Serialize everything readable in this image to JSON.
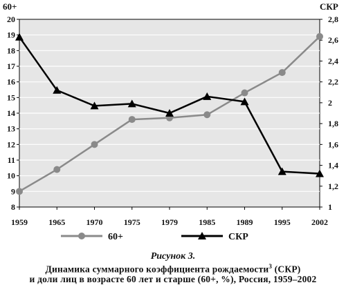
{
  "chart_data": {
    "type": "line",
    "categories": [
      "1959",
      "1965",
      "1970",
      "1975",
      "1979",
      "1985",
      "1989",
      "1995",
      "2002"
    ],
    "series": [
      {
        "name": "60+",
        "axis": "left",
        "color": "#8a8a8a",
        "marker": "circle",
        "values": [
          9.0,
          10.4,
          12.0,
          13.6,
          13.7,
          13.9,
          15.3,
          16.6,
          18.9
        ]
      },
      {
        "name": "СКР",
        "axis": "right",
        "color": "#000000",
        "marker": "triangle",
        "values": [
          2.63,
          2.12,
          1.97,
          1.99,
          1.9,
          2.06,
          2.01,
          1.34,
          1.32
        ]
      }
    ],
    "y_left": {
      "label": "60+",
      "range": [
        8,
        20
      ],
      "ticks": [
        "8",
        "9",
        "10",
        "11",
        "12",
        "13",
        "14",
        "15",
        "16",
        "17",
        "18",
        "19",
        "20"
      ]
    },
    "y_right": {
      "label": "СКР",
      "range": [
        1,
        2.8
      ],
      "ticks": [
        "1",
        "1,2",
        "1,4",
        "1,6",
        "1,8",
        "2",
        "2,2",
        "2,4",
        "2,6",
        "2,8"
      ]
    },
    "grid": true,
    "legend_position": "bottom"
  },
  "caption": {
    "title": "Рисунок 3.",
    "line1_main": "Динамика суммарного коэффициента рождаемости",
    "line1_sup": "3",
    "line1_tail": " (СКР)",
    "line2": "и доли лиц в возрасте 60 лет и старше (60+, %), Россия, 1959–2002"
  }
}
